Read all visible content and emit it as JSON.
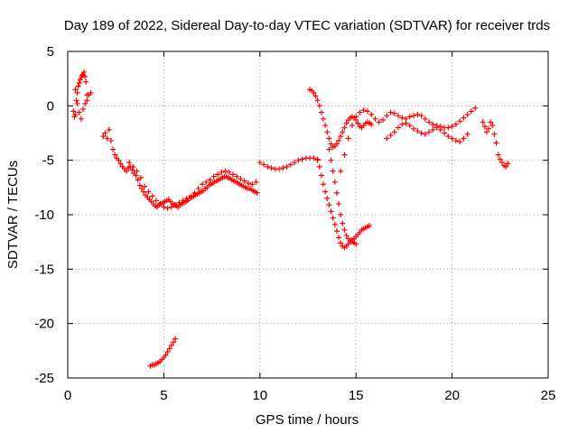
{
  "chart_data": {
    "type": "scatter",
    "title": "Day 189 of 2022, Sidereal Day-to-day VTEC variation (SDTVAR) for receiver trds",
    "xlabel": "GPS time / hours",
    "ylabel": "SDTVAR / TECUs",
    "xlim": [
      0,
      25
    ],
    "ylim": [
      -25,
      5
    ],
    "xticks": [
      "0",
      "5",
      "10",
      "15",
      "20",
      "25"
    ],
    "yticks": [
      "5",
      "0",
      "-5",
      "-10",
      "-15",
      "-20",
      "-25"
    ],
    "grid": true,
    "marker": "+",
    "color": "#ff0000",
    "series": [
      {
        "name": "SDTVAR",
        "x": [
          0.3,
          0.35,
          0.4,
          0.45,
          0.5,
          0.55,
          0.6,
          0.65,
          0.7,
          0.75,
          0.8,
          0.85,
          0.9,
          0.95,
          1.0,
          0.4,
          0.5,
          0.6,
          0.7,
          0.8,
          0.9,
          1.0,
          1.1,
          1.2,
          1.85,
          1.95,
          2.05,
          2.15,
          2.25,
          2.35,
          2.45,
          2.55,
          2.65,
          2.75,
          2.85,
          2.95,
          3.05,
          3.15,
          3.25,
          3.35,
          3.45,
          3.55,
          3.65,
          3.75,
          3.85,
          3.95,
          4.05,
          4.15,
          4.25,
          4.35,
          4.45,
          4.55,
          4.65,
          4.75,
          4.85,
          4.95,
          5.05,
          5.15,
          5.25,
          5.35,
          5.45,
          5.55,
          5.65,
          5.75,
          5.85,
          5.95,
          6.05,
          6.15,
          6.25,
          6.35,
          6.45,
          6.55,
          6.65,
          6.75,
          6.85,
          6.95,
          7.05,
          7.15,
          7.25,
          7.35,
          7.45,
          7.55,
          7.65,
          7.75,
          7.85,
          7.95,
          8.05,
          8.15,
          8.25,
          8.35,
          8.45,
          8.55,
          8.65,
          8.75,
          8.85,
          8.95,
          9.05,
          9.15,
          9.25,
          9.35,
          9.45,
          9.55,
          9.65,
          9.75,
          9.85,
          3.2,
          3.4,
          3.6,
          3.8,
          4.0,
          4.2,
          4.4,
          4.6,
          4.8,
          5.0,
          5.2,
          5.4,
          5.6,
          5.8,
          6.0,
          6.2,
          6.4,
          6.6,
          6.8,
          7.0,
          7.2,
          7.4,
          7.6,
          7.8,
          8.0,
          8.2,
          8.4,
          8.6,
          8.8,
          9.0,
          9.2,
          9.4,
          9.6,
          9.8,
          10.0,
          10.2,
          10.4,
          10.6,
          10.8,
          11.0,
          11.2,
          11.4,
          11.6,
          11.8,
          12.0,
          12.2,
          12.4,
          12.6,
          12.8,
          13.0,
          12.6,
          12.7,
          12.8,
          12.9,
          13.0,
          13.1,
          13.2,
          13.3,
          13.4,
          13.5,
          13.6,
          13.7,
          13.8,
          13.9,
          14.0,
          14.1,
          14.2,
          14.3,
          14.4,
          14.5,
          14.6,
          14.7,
          14.8,
          14.9,
          15.0,
          15.1,
          15.2,
          15.3,
          15.4,
          15.5,
          15.6,
          15.7,
          15.8,
          13.0,
          13.1,
          13.2,
          13.3,
          13.4,
          13.5,
          13.6,
          13.7,
          13.8,
          13.9,
          14.0,
          14.1,
          14.2,
          14.3,
          14.4,
          14.5,
          14.6,
          14.7,
          14.8,
          14.9,
          15.0,
          15.1,
          15.2,
          15.3,
          15.4,
          15.5,
          15.6,
          15.7,
          13.6,
          13.7,
          13.8,
          13.9,
          14.0,
          14.1,
          14.2,
          14.3,
          14.4,
          14.5,
          14.6,
          14.7,
          14.8,
          14.9,
          15.0,
          14.2,
          14.4,
          14.6,
          14.8,
          15.0,
          15.2,
          15.4,
          15.6,
          15.8,
          16.0,
          16.2,
          16.4,
          16.6,
          16.8,
          17.0,
          17.2,
          17.4,
          17.6,
          17.8,
          18.0,
          18.2,
          18.4,
          18.6,
          18.8,
          19.0,
          19.2,
          19.4,
          19.6,
          19.8,
          20.0,
          20.2,
          20.4,
          20.6,
          20.8,
          21.0,
          21.2,
          16.6,
          16.8,
          17.0,
          17.2,
          17.4,
          17.6,
          17.8,
          18.0,
          18.2,
          18.4,
          18.6,
          18.8,
          19.0,
          19.2,
          19.4,
          19.6,
          19.8,
          20.0,
          20.2,
          20.4,
          20.6,
          20.8,
          21.6,
          21.7,
          21.8,
          21.9,
          22.0,
          22.1,
          22.2,
          22.3,
          22.4,
          22.5,
          22.6,
          22.7,
          22.8,
          22.9,
          4.3,
          4.4,
          4.5,
          4.6,
          4.7,
          4.8,
          4.9,
          5.0,
          5.1,
          5.2,
          5.3,
          5.4,
          5.5,
          5.6
        ],
        "y": [
          -0.5,
          -1.0,
          -0.8,
          0.5,
          1.2,
          1.8,
          2.1,
          2.4,
          2.6,
          2.8,
          2.9,
          3.1,
          2.7,
          2.2,
          1.0,
          1.5,
          0.2,
          -0.6,
          -1.2,
          -0.3,
          0.2,
          0.5,
          1.0,
          1.2,
          -2.8,
          -2.5,
          -3.0,
          -2.2,
          -3.2,
          -4.0,
          -4.5,
          -4.8,
          -5.0,
          -5.3,
          -5.6,
          -5.8,
          -6.0,
          -5.7,
          -5.6,
          -5.9,
          -6.2,
          -6.4,
          -6.8,
          -7.3,
          -7.6,
          -7.9,
          -8.2,
          -8.4,
          -8.6,
          -8.8,
          -9.0,
          -9.2,
          -9.3,
          -9.1,
          -9.0,
          -8.9,
          -8.8,
          -8.7,
          -8.6,
          -8.8,
          -9.0,
          -9.1,
          -9.2,
          -9.3,
          -9.1,
          -9.0,
          -8.9,
          -8.8,
          -8.7,
          -8.5,
          -8.4,
          -8.3,
          -8.2,
          -8.1,
          -8.0,
          -7.9,
          -7.8,
          -7.6,
          -7.5,
          -7.3,
          -7.2,
          -7.1,
          -7.0,
          -6.9,
          -6.8,
          -6.7,
          -6.6,
          -6.5,
          -6.5,
          -6.6,
          -6.7,
          -6.8,
          -6.9,
          -7.0,
          -7.1,
          -7.2,
          -7.3,
          -7.4,
          -7.5,
          -7.6,
          -7.6,
          -7.7,
          -7.8,
          -7.9,
          -8.0,
          -5.2,
          -5.6,
          -6.0,
          -6.6,
          -7.4,
          -7.9,
          -8.3,
          -8.7,
          -9.0,
          -9.3,
          -9.4,
          -9.3,
          -9.1,
          -8.9,
          -8.7,
          -8.5,
          -8.3,
          -8.0,
          -7.6,
          -7.2,
          -7.0,
          -6.8,
          -6.5,
          -6.3,
          -6.1,
          -6.0,
          -6.1,
          -6.3,
          -6.5,
          -6.7,
          -6.9,
          -7.1,
          -7.2,
          -7.0,
          -5.2,
          -5.4,
          -5.6,
          -5.7,
          -5.8,
          -5.8,
          -5.7,
          -5.6,
          -5.4,
          -5.2,
          -5.0,
          -4.9,
          -4.8,
          -4.8,
          -4.8,
          -4.9,
          1.5,
          1.4,
          1.2,
          0.9,
          0.5,
          0.0,
          -0.6,
          -1.2,
          -1.8,
          -2.4,
          -3.0,
          -3.5,
          -3.8,
          -3.7,
          -3.5,
          -3.2,
          -2.8,
          -2.4,
          -2.0,
          -1.6,
          -1.3,
          -1.1,
          -1.0,
          -1.1,
          -1.3,
          -1.6,
          -1.9,
          -2.0,
          -1.8,
          -1.6,
          -1.5,
          -1.6,
          -1.7,
          -5.0,
          -5.6,
          -6.4,
          -7.2,
          -7.9,
          -8.5,
          -9.1,
          -9.7,
          -10.3,
          -10.9,
          -11.5,
          -12.1,
          -12.6,
          -12.9,
          -13.0,
          -12.9,
          -12.7,
          -12.5,
          -12.3,
          -12.2,
          -12.0,
          -11.8,
          -11.6,
          -11.4,
          -11.3,
          -11.2,
          -11.1,
          -11.0,
          -4.0,
          -5.0,
          -6.0,
          -7.0,
          -8.0,
          -9.0,
          -10.0,
          -10.8,
          -11.4,
          -11.9,
          -12.2,
          -12.4,
          -12.5,
          -12.6,
          -12.7,
          -6.0,
          -4.5,
          -3.0,
          -1.8,
          -1.0,
          -0.6,
          -0.4,
          -0.5,
          -0.8,
          -1.2,
          -1.5,
          -1.3,
          -0.9,
          -0.6,
          -0.7,
          -0.9,
          -1.1,
          -1.2,
          -1.0,
          -0.9,
          -0.8,
          -0.9,
          -1.2,
          -1.5,
          -1.7,
          -1.8,
          -1.9,
          -2.0,
          -2.0,
          -1.9,
          -1.7,
          -1.4,
          -1.1,
          -0.8,
          -0.5,
          -0.2,
          -3.0,
          -2.7,
          -2.4,
          -2.0,
          -1.7,
          -1.6,
          -1.8,
          -2.1,
          -2.3,
          -2.5,
          -2.6,
          -2.4,
          -2.2,
          -2.0,
          -2.2,
          -2.5,
          -2.8,
          -3.0,
          -3.2,
          -3.3,
          -3.0,
          -2.6,
          -1.5,
          -1.9,
          -2.4,
          -2.1,
          -1.5,
          -1.8,
          -2.6,
          -3.4,
          -4.5,
          -4.9,
          -5.2,
          -5.5,
          -5.6,
          -5.3,
          -23.9,
          -23.8,
          -23.8,
          -23.7,
          -23.6,
          -23.5,
          -23.3,
          -23.1,
          -22.9,
          -22.6,
          -22.3,
          -22.0,
          -21.7,
          -21.4
        ]
      }
    ]
  }
}
